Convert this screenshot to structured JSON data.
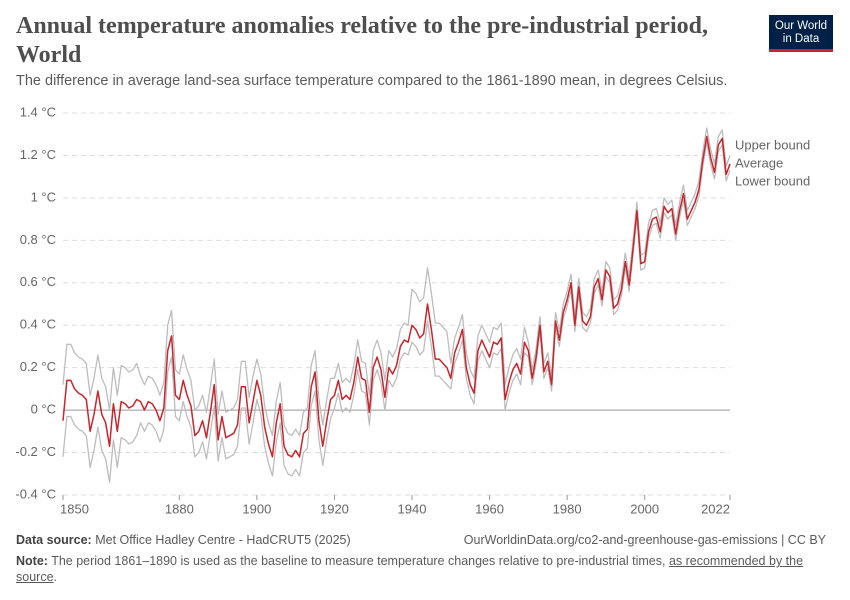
{
  "chart_data": {
    "type": "line",
    "title": "Annual temperature anomalies relative to the pre-industrial period, World",
    "subtitle": "The difference in average land-sea surface temperature compared to the 1861-1890 mean, in degrees Celsius.",
    "x": [
      1850,
      1851,
      1852,
      1853,
      1854,
      1855,
      1856,
      1857,
      1858,
      1859,
      1860,
      1861,
      1862,
      1863,
      1864,
      1865,
      1866,
      1867,
      1868,
      1869,
      1870,
      1871,
      1872,
      1873,
      1874,
      1875,
      1876,
      1877,
      1878,
      1879,
      1880,
      1881,
      1882,
      1883,
      1884,
      1885,
      1886,
      1887,
      1888,
      1889,
      1890,
      1891,
      1892,
      1893,
      1894,
      1895,
      1896,
      1897,
      1898,
      1899,
      1900,
      1901,
      1902,
      1903,
      1904,
      1905,
      1906,
      1907,
      1908,
      1909,
      1910,
      1911,
      1912,
      1913,
      1914,
      1915,
      1916,
      1917,
      1918,
      1919,
      1920,
      1921,
      1922,
      1923,
      1924,
      1925,
      1926,
      1927,
      1928,
      1929,
      1930,
      1931,
      1932,
      1933,
      1934,
      1935,
      1936,
      1937,
      1938,
      1939,
      1940,
      1941,
      1942,
      1943,
      1944,
      1945,
      1946,
      1947,
      1948,
      1949,
      1950,
      1951,
      1952,
      1953,
      1954,
      1955,
      1956,
      1957,
      1958,
      1959,
      1960,
      1961,
      1962,
      1963,
      1964,
      1965,
      1966,
      1967,
      1968,
      1969,
      1970,
      1971,
      1972,
      1973,
      1974,
      1975,
      1976,
      1977,
      1978,
      1979,
      1980,
      1981,
      1982,
      1983,
      1984,
      1985,
      1986,
      1987,
      1988,
      1989,
      1990,
      1991,
      1992,
      1993,
      1994,
      1995,
      1996,
      1997,
      1998,
      1999,
      2000,
      2001,
      2002,
      2003,
      2004,
      2005,
      2006,
      2007,
      2008,
      2009,
      2010,
      2011,
      2012,
      2013,
      2014,
      2015,
      2016,
      2017,
      2018,
      2019,
      2020,
      2021,
      2022
    ],
    "series": [
      {
        "name": "Upper bound",
        "color": "#bdbdbd",
        "values": [
          0.12,
          0.31,
          0.31,
          0.27,
          0.25,
          0.24,
          0.22,
          0.07,
          0.15,
          0.26,
          0.15,
          0.11,
          0.0,
          0.2,
          0.07,
          0.21,
          0.2,
          0.18,
          0.19,
          0.22,
          0.16,
          0.12,
          0.16,
          0.15,
          0.12,
          0.07,
          0.13,
          0.4,
          0.47,
          0.19,
          0.17,
          0.26,
          0.19,
          0.14,
          0.0,
          0.02,
          0.07,
          -0.01,
          0.11,
          0.24,
          -0.02,
          0.09,
          -0.01,
          0.0,
          0.01,
          0.05,
          0.23,
          0.23,
          0.06,
          0.16,
          0.24,
          0.17,
          0.02,
          -0.06,
          -0.12,
          0.04,
          0.13,
          -0.07,
          -0.11,
          -0.12,
          -0.09,
          -0.12,
          -0.01,
          0.01,
          0.21,
          0.28,
          0.05,
          -0.07,
          0.05,
          0.15,
          0.15,
          0.22,
          0.13,
          0.15,
          0.13,
          0.21,
          0.33,
          0.23,
          0.22,
          0.07,
          0.28,
          0.33,
          0.27,
          0.14,
          0.28,
          0.25,
          0.29,
          0.38,
          0.41,
          0.4,
          0.57,
          0.55,
          0.51,
          0.53,
          0.67,
          0.55,
          0.41,
          0.41,
          0.39,
          0.37,
          0.22,
          0.34,
          0.39,
          0.45,
          0.27,
          0.19,
          0.15,
          0.35,
          0.4,
          0.36,
          0.32,
          0.39,
          0.38,
          0.41,
          0.12,
          0.2,
          0.26,
          0.29,
          0.24,
          0.39,
          0.32,
          0.19,
          0.29,
          0.44,
          0.22,
          0.27,
          0.16,
          0.46,
          0.37,
          0.5,
          0.56,
          0.64,
          0.44,
          0.62,
          0.46,
          0.44,
          0.48,
          0.62,
          0.66,
          0.56,
          0.7,
          0.67,
          0.52,
          0.54,
          0.61,
          0.74,
          0.63,
          0.8,
          0.98,
          0.73,
          0.74,
          0.88,
          0.94,
          0.95,
          0.88,
          1.0,
          0.97,
          0.99,
          0.87,
          0.98,
          1.06,
          0.94,
          0.98,
          1.02,
          1.08,
          1.22,
          1.33,
          1.23,
          1.16,
          1.29,
          1.32,
          1.15,
          1.2
        ]
      },
      {
        "name": "Average",
        "color": "#c8252c",
        "values": [
          -0.05,
          0.14,
          0.14,
          0.1,
          0.08,
          0.07,
          0.05,
          -0.1,
          -0.02,
          0.09,
          -0.02,
          -0.06,
          -0.17,
          0.03,
          -0.1,
          0.04,
          0.03,
          0.01,
          0.02,
          0.05,
          0.04,
          0.0,
          0.04,
          0.03,
          0.0,
          -0.05,
          0.01,
          0.28,
          0.35,
          0.07,
          0.05,
          0.14,
          0.07,
          0.02,
          -0.12,
          -0.1,
          -0.05,
          -0.13,
          -0.01,
          0.12,
          -0.14,
          -0.03,
          -0.13,
          -0.12,
          -0.11,
          -0.07,
          0.11,
          0.11,
          -0.06,
          0.04,
          0.14,
          0.07,
          -0.08,
          -0.16,
          -0.22,
          -0.06,
          0.03,
          -0.17,
          -0.21,
          -0.22,
          -0.19,
          -0.22,
          -0.11,
          -0.09,
          0.11,
          0.18,
          -0.05,
          -0.17,
          -0.05,
          0.05,
          0.07,
          0.14,
          0.05,
          0.07,
          0.05,
          0.13,
          0.25,
          0.15,
          0.14,
          -0.01,
          0.2,
          0.25,
          0.19,
          0.06,
          0.2,
          0.17,
          0.21,
          0.3,
          0.33,
          0.32,
          0.4,
          0.38,
          0.34,
          0.36,
          0.5,
          0.38,
          0.24,
          0.24,
          0.22,
          0.2,
          0.15,
          0.27,
          0.32,
          0.38,
          0.2,
          0.12,
          0.08,
          0.28,
          0.33,
          0.29,
          0.25,
          0.32,
          0.31,
          0.34,
          0.05,
          0.13,
          0.19,
          0.22,
          0.17,
          0.32,
          0.28,
          0.15,
          0.25,
          0.4,
          0.18,
          0.23,
          0.12,
          0.42,
          0.33,
          0.46,
          0.52,
          0.6,
          0.4,
          0.58,
          0.42,
          0.4,
          0.44,
          0.58,
          0.62,
          0.52,
          0.66,
          0.63,
          0.48,
          0.5,
          0.57,
          0.7,
          0.59,
          0.76,
          0.94,
          0.69,
          0.7,
          0.84,
          0.9,
          0.91,
          0.84,
          0.96,
          0.93,
          0.95,
          0.83,
          0.94,
          1.02,
          0.9,
          0.94,
          0.98,
          1.04,
          1.18,
          1.29,
          1.19,
          1.12,
          1.25,
          1.28,
          1.11,
          1.16
        ]
      },
      {
        "name": "Lower bound",
        "color": "#bdbdbd",
        "values": [
          -0.22,
          -0.03,
          -0.03,
          -0.07,
          -0.09,
          -0.1,
          -0.12,
          -0.27,
          -0.19,
          -0.08,
          -0.19,
          -0.23,
          -0.34,
          -0.14,
          -0.27,
          -0.13,
          -0.14,
          -0.16,
          -0.15,
          -0.12,
          -0.06,
          -0.1,
          -0.06,
          -0.07,
          -0.1,
          -0.15,
          -0.09,
          0.18,
          0.25,
          -0.03,
          -0.05,
          0.04,
          -0.03,
          -0.08,
          -0.22,
          -0.2,
          -0.15,
          -0.23,
          -0.11,
          0.02,
          -0.24,
          -0.13,
          -0.23,
          -0.22,
          -0.21,
          -0.17,
          0.01,
          0.01,
          -0.16,
          -0.06,
          0.05,
          -0.02,
          -0.17,
          -0.25,
          -0.31,
          -0.15,
          -0.06,
          -0.26,
          -0.3,
          -0.31,
          -0.28,
          -0.31,
          -0.2,
          -0.18,
          0.02,
          0.09,
          -0.14,
          -0.26,
          -0.14,
          -0.04,
          0.01,
          0.08,
          -0.01,
          0.01,
          -0.01,
          0.07,
          0.19,
          0.09,
          0.08,
          -0.07,
          0.14,
          0.19,
          0.13,
          0.0,
          0.14,
          0.11,
          0.15,
          0.24,
          0.27,
          0.26,
          0.32,
          0.3,
          0.26,
          0.28,
          0.42,
          0.3,
          0.16,
          0.16,
          0.14,
          0.12,
          0.1,
          0.22,
          0.27,
          0.33,
          0.15,
          0.07,
          0.03,
          0.23,
          0.28,
          0.24,
          0.2,
          0.27,
          0.26,
          0.29,
          0.0,
          0.08,
          0.14,
          0.17,
          0.12,
          0.27,
          0.25,
          0.12,
          0.22,
          0.37,
          0.15,
          0.2,
          0.09,
          0.39,
          0.3,
          0.43,
          0.49,
          0.57,
          0.37,
          0.55,
          0.39,
          0.37,
          0.41,
          0.55,
          0.59,
          0.49,
          0.63,
          0.6,
          0.45,
          0.47,
          0.54,
          0.67,
          0.56,
          0.73,
          0.91,
          0.66,
          0.67,
          0.81,
          0.87,
          0.88,
          0.81,
          0.93,
          0.9,
          0.92,
          0.8,
          0.91,
          0.99,
          0.87,
          0.91,
          0.95,
          1.01,
          1.15,
          1.26,
          1.16,
          1.09,
          1.22,
          1.25,
          1.08,
          1.13
        ]
      }
    ],
    "xlim": [
      1850,
      2022
    ],
    "xticks": [
      1850,
      1880,
      1900,
      1920,
      1940,
      1960,
      1980,
      2000,
      2022
    ],
    "ylim": [
      -0.4,
      1.4
    ],
    "yticks": [
      {
        "value": -0.4,
        "label": "-0.4 °C"
      },
      {
        "value": -0.2,
        "label": "-0.2 °C"
      },
      {
        "value": 0,
        "label": "0 °C"
      },
      {
        "value": 0.2,
        "label": "0.2 °C"
      },
      {
        "value": 0.4,
        "label": "0.4 °C"
      },
      {
        "value": 0.6,
        "label": "0.6 °C"
      },
      {
        "value": 0.8,
        "label": "0.8 °C"
      },
      {
        "value": 1,
        "label": "1 °C"
      },
      {
        "value": 1.2,
        "label": "1.2 °C"
      },
      {
        "value": 1.4,
        "label": "1.4 °C"
      }
    ],
    "grid": true
  },
  "logo": {
    "line1": "Our World",
    "line2": "in Data"
  },
  "footer": {
    "source_label": "Data source:",
    "source": "Met Office Hadley Centre - HadCRUT5 (2025)",
    "url": "OurWorldinData.org/co2-and-greenhouse-gas-emissions | CC BY",
    "note_label": "Note:",
    "note": "The period 1861–1890 is used as the baseline to measure temperature changes relative to pre-industrial times,",
    "note_link": "as recommended by the source",
    "note_end": "."
  }
}
